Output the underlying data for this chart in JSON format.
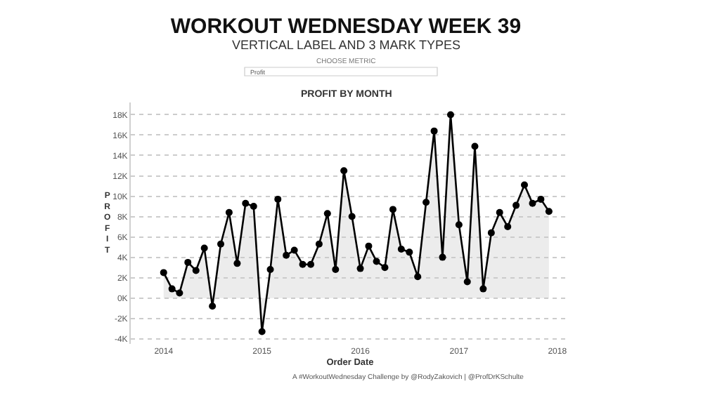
{
  "chart_data": {
    "type": "area",
    "title": "WORKOUT WEDNESDAY WEEK 39",
    "subtitle": "VERTICAL LABEL AND 3 MARK TYPES",
    "xlabel": "Order Date",
    "ylabel": "PROFIT",
    "annotations": [
      "CHOOSE METRIC",
      "Profit",
      "PROFIT BY MONTH",
      "A #WorkoutWednesday Challenge by @RodyZakovich | @ProfDrKSchulte"
    ],
    "x": [
      "2014-01",
      "2014-02",
      "2014-03",
      "2014-04",
      "2014-05",
      "2014-06",
      "2014-07",
      "2014-08",
      "2014-09",
      "2014-10",
      "2014-11",
      "2014-12",
      "2015-01",
      "2015-02",
      "2015-03",
      "2015-04",
      "2015-05",
      "2015-06",
      "2015-07",
      "2015-08",
      "2015-09",
      "2015-10",
      "2015-11",
      "2015-12",
      "2016-01",
      "2016-02",
      "2016-03",
      "2016-04",
      "2016-05",
      "2016-06",
      "2016-07",
      "2016-08",
      "2016-09",
      "2016-10",
      "2016-11",
      "2016-12",
      "2017-01",
      "2017-02",
      "2017-03",
      "2017-04",
      "2017-05",
      "2017-06",
      "2017-07",
      "2017-08",
      "2017-09",
      "2017-10",
      "2017-11",
      "2017-12"
    ],
    "series": [
      {
        "color": "#000000",
        "values": [
          2.5,
          0.9,
          0.5,
          3.5,
          2.7,
          4.9,
          -0.8,
          5.3,
          8.4,
          3.4,
          9.3,
          9.0,
          -3.3,
          2.8,
          9.7,
          4.2,
          4.7,
          3.3,
          3.3,
          5.3,
          8.3,
          2.8,
          12.5,
          8.0,
          2.9,
          5.1,
          3.6,
          3.0,
          8.7,
          4.8,
          4.5,
          2.1,
          9.4,
          16.4,
          4.0,
          18.0,
          7.2,
          1.6,
          14.9,
          0.9,
          6.4,
          8.4,
          7.0,
          9.1,
          11.1,
          9.3,
          9.7,
          8.5
        ]
      }
    ],
    "xlim": [
      "2013-09-01",
      "2018-02-15"
    ],
    "xticks": [
      {
        "value": "2014-01-01",
        "label": "2014"
      },
      {
        "value": "2015-01-01",
        "label": "2015"
      },
      {
        "value": "2016-01-01",
        "label": "2016"
      },
      {
        "value": "2017-01-01",
        "label": "2017"
      },
      {
        "value": "2018-01-01",
        "label": "2018"
      }
    ],
    "ylim": [
      -4.5,
      19.2
    ],
    "yticks": [
      {
        "value": -4,
        "label": "-4K"
      },
      {
        "value": -2,
        "label": "-2K"
      },
      {
        "value": 0,
        "label": "0K"
      },
      {
        "value": 2,
        "label": "2K"
      },
      {
        "value": 4,
        "label": "4K"
      },
      {
        "value": 6,
        "label": "6K"
      },
      {
        "value": 8,
        "label": "8K"
      },
      {
        "value": 10,
        "label": "10K"
      },
      {
        "value": 12,
        "label": "12K"
      },
      {
        "value": 14,
        "label": "14K"
      },
      {
        "value": 16,
        "label": "16K"
      },
      {
        "value": 18,
        "label": "18K"
      }
    ],
    "grid": "y",
    "marker": "circle",
    "line_style": "solid"
  }
}
